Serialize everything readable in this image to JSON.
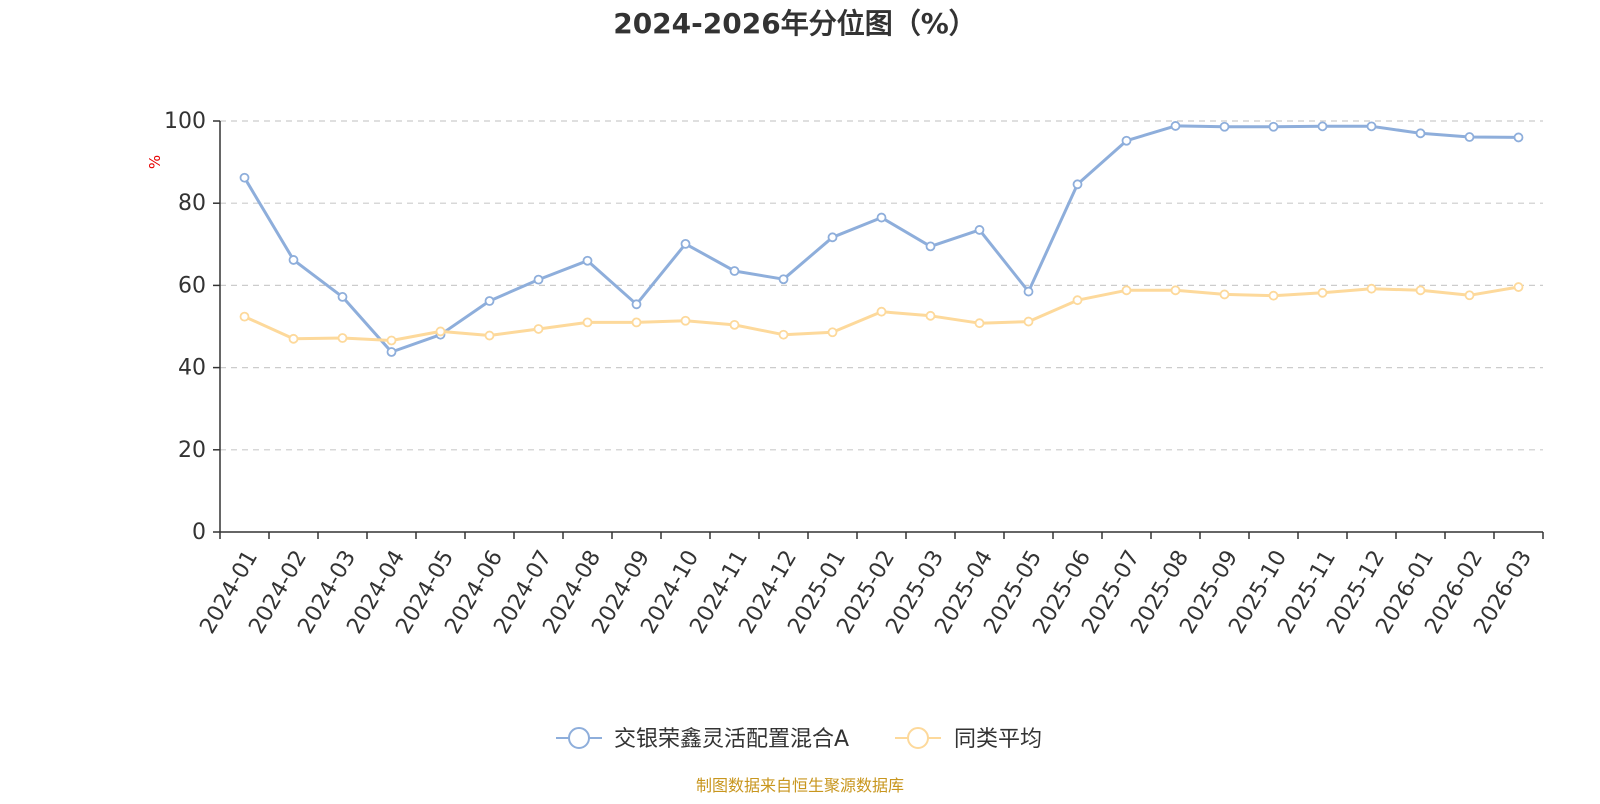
{
  "chart_data": {
    "type": "line",
    "title": "2024-2026年分位图（%）",
    "ylabel": "%",
    "xlabel": "",
    "ylim": [
      0,
      100
    ],
    "yticks": [
      0,
      20,
      40,
      60,
      80,
      100
    ],
    "grid": true,
    "legend_position": "bottom",
    "categories": [
      "2024-01",
      "2024-02",
      "2024-03",
      "2024-04",
      "2024-05",
      "2024-06",
      "2024-07",
      "2024-08",
      "2024-09",
      "2024-10",
      "2024-11",
      "2024-12",
      "2025-01",
      "2025-02",
      "2025-03",
      "2025-04",
      "2025-05",
      "2025-06",
      "2025-07",
      "2025-08",
      "2025-09",
      "2025-10",
      "2025-11",
      "2025-12",
      "2026-01",
      "2026-02",
      "2026-03"
    ],
    "series": [
      {
        "name": "交银荣鑫灵活配置混合A",
        "color": "#8eaedb",
        "values": [
          86.2,
          66.2,
          57.2,
          43.8,
          48.0,
          56.2,
          61.4,
          66.0,
          55.4,
          70.1,
          63.5,
          61.5,
          71.7,
          76.5,
          69.5,
          73.5,
          58.5,
          84.6,
          95.2,
          98.8,
          98.6,
          98.6,
          98.7,
          98.7,
          97.0,
          96.1,
          96.0
        ]
      },
      {
        "name": "同类平均",
        "color": "#fdd99b",
        "values": [
          52.4,
          47.0,
          47.2,
          46.6,
          48.8,
          47.8,
          49.4,
          51.0,
          51.0,
          51.4,
          50.4,
          48.0,
          48.6,
          53.6,
          52.6,
          50.8,
          51.2,
          56.4,
          58.8,
          58.8,
          57.8,
          57.5,
          58.2,
          59.2,
          58.8,
          57.6,
          59.6
        ]
      }
    ]
  },
  "source": {
    "text": "制图数据来自恒生聚源数据库",
    "color": "#c8961e"
  },
  "colors": {
    "axis": "#333333",
    "grid": "#cccccc",
    "unit_label": "#e60000"
  }
}
